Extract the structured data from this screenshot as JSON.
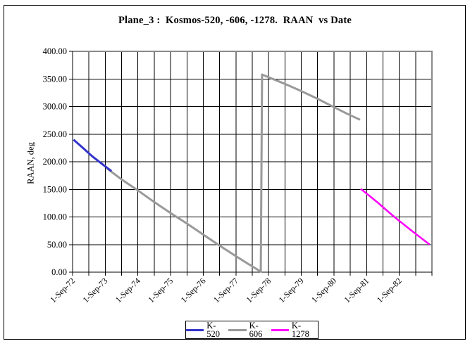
{
  "window": {
    "background_color": "#FFFFFF",
    "border_color": "#000000"
  },
  "chart_data": {
    "type": "line",
    "title": "Plane_3 :  Kosmos-520, -606, -1278.  RAAN  vs Date",
    "ylabel": "RAAN, deg",
    "xlabel": "",
    "ylim": [
      0,
      400
    ],
    "x_range_years": [
      0,
      11
    ],
    "grid": true,
    "grid_color": "#000000",
    "axis_color": "#000000",
    "plot_border_color": "#8A8A8A",
    "y_ticks": {
      "values": [
        0,
        50,
        100,
        150,
        200,
        250,
        300,
        350,
        400
      ],
      "labels": [
        "0.00",
        "50.00",
        "100.00",
        "150.00",
        "200.00",
        "250.00",
        "300.00",
        "350.00",
        "400.00"
      ]
    },
    "x_ticks": {
      "positions_years": [
        0,
        1,
        2,
        3,
        4,
        5,
        6,
        7,
        8,
        9,
        10
      ],
      "labels": [
        "1-Sep-72",
        "1-Sep-73",
        "1-Sep-74",
        "1-Sep-75",
        "1-Sep-76",
        "1-Sep-77",
        "1-Sep-78",
        "1-Sep-79",
        "1-Sep-80",
        "1-Sep-81",
        "1-Sep-82"
      ],
      "minor_interval_years": 0.5
    },
    "x_unit_note": "x values are years elapsed since 1-Sep-72",
    "series": [
      {
        "name": "K-520",
        "color": "#3333CC",
        "width": 3,
        "points": [
          [
            0.03,
            240
          ],
          [
            0.3,
            226
          ],
          [
            0.6,
            210
          ],
          [
            0.9,
            196
          ],
          [
            1.19,
            183
          ]
        ]
      },
      {
        "name": "K-606",
        "color": "#999999",
        "width": 3,
        "points": [
          [
            1.05,
            188
          ],
          [
            1.5,
            168
          ],
          [
            2.0,
            148
          ],
          [
            2.5,
            127
          ],
          [
            3.0,
            107
          ],
          [
            3.5,
            88
          ],
          [
            4.0,
            68
          ],
          [
            4.5,
            48
          ],
          [
            5.0,
            29
          ],
          [
            5.4,
            14
          ],
          [
            5.76,
            1
          ],
          [
            5.8,
            358
          ],
          [
            6.5,
            341
          ],
          [
            7.0,
            328
          ],
          [
            7.5,
            314
          ],
          [
            8.0,
            299
          ],
          [
            8.4,
            287
          ],
          [
            8.8,
            276
          ]
        ]
      },
      {
        "name": "K-1278",
        "color": "#FF00FF",
        "width": 2.5,
        "points": [
          [
            8.82,
            151
          ],
          [
            9.3,
            128
          ],
          [
            9.85,
            100
          ],
          [
            10.4,
            74
          ],
          [
            10.93,
            50
          ]
        ]
      }
    ],
    "draw_order": [
      "K-606",
      "K-520",
      "K-1278"
    ],
    "legend": {
      "position": "bottom-center",
      "labels": [
        "K-520",
        "K-606",
        "K-1278"
      ]
    }
  }
}
